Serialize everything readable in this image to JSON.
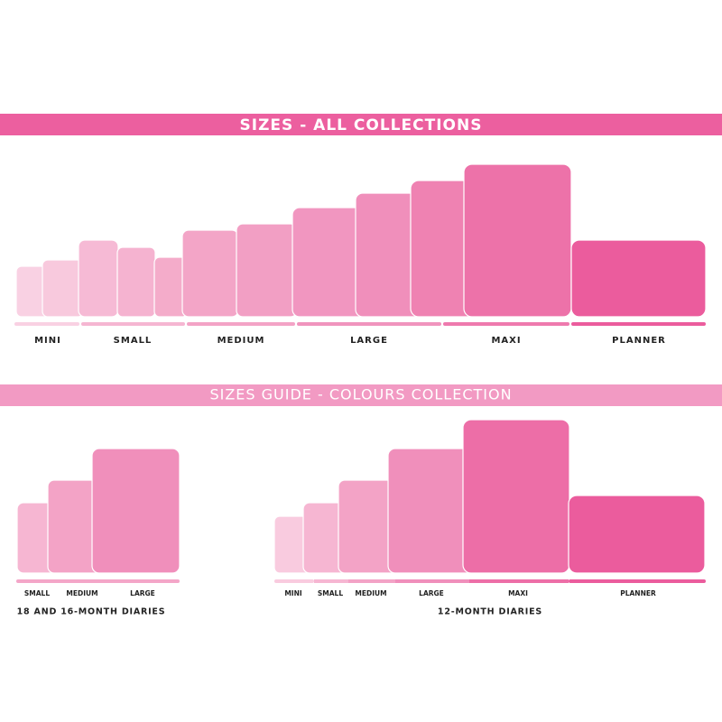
{
  "section_1": {
    "title": "SIZES - ALL COLLECTIONS",
    "labels": [
      "MINI",
      "SMALL",
      "MEDIUM",
      "LARGE",
      "MAXI",
      "PLANNER"
    ]
  },
  "section_2": {
    "title": "SIZES GUIDE - COLOURS COLLECTION",
    "groups": [
      {
        "labels": [
          "SMALL",
          "MEDIUM",
          "LARGE"
        ],
        "caption": "18 AND 16-MONTH DIARIES"
      },
      {
        "labels": [
          "MINI",
          "SMALL",
          "MEDIUM",
          "LARGE",
          "MAXI",
          "PLANNER"
        ],
        "caption": "12-MONTH DIARIES"
      }
    ]
  }
}
